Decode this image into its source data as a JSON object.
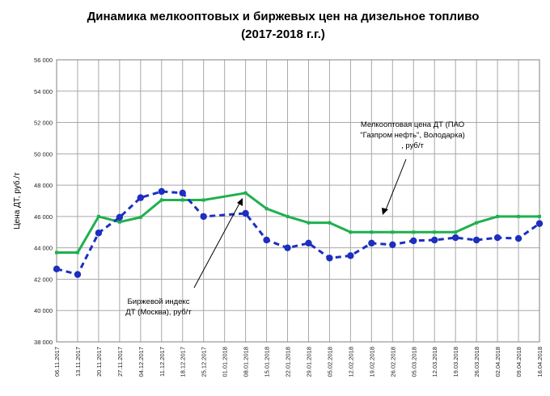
{
  "chart_data": {
    "type": "line",
    "title": "Динамика мелкооптовых и биржевых цен на дизельное топливо",
    "subtitle": "(2017-2018 г.г.)",
    "xlabel": "",
    "ylabel": "Цена ДТ, руб./т",
    "ylim": [
      38000,
      56000
    ],
    "yticks": [
      "38 000",
      "40 000",
      "42 000",
      "44 000",
      "46 000",
      "48 000",
      "50 000",
      "52 000",
      "54 000",
      "56 000"
    ],
    "ytick_values": [
      38000,
      40000,
      42000,
      44000,
      46000,
      48000,
      50000,
      52000,
      54000,
      56000
    ],
    "grid": true,
    "categories": [
      "06.11.2017",
      "13.11.2017",
      "20.11.2017",
      "27.11.2017",
      "04.12.2017",
      "11.12.2017",
      "18.12.2017",
      "25.12.2017",
      "01.01.2018",
      "08.01.2018",
      "15.01.2018",
      "22.01.2018",
      "29.01.2018",
      "05.02.2018",
      "12.02.2018",
      "19.02.2018",
      "26.02.2018",
      "05.03.2018",
      "12.03.2018",
      "19.03.2018",
      "26.03.2018",
      "02.04.2018",
      "09.04.2018",
      "16.04.2018"
    ],
    "series": [
      {
        "name": "Мелкооптовая цена ДТ (ПАО \"Газпром нефть\", Володарка) , руб/т",
        "color": "#1fb04e",
        "style": "solid",
        "values": [
          43700,
          43700,
          46000,
          45650,
          45950,
          47050,
          47050,
          47050,
          null,
          47500,
          46500,
          46000,
          45600,
          45600,
          45000,
          45000,
          45000,
          45000,
          45000,
          45000,
          45600,
          46000,
          46000,
          46000
        ]
      },
      {
        "name": "Биржевой индекс ДТ (Москва), руб/т",
        "color": "#1c2fbf",
        "style": "dashed",
        "values": [
          42650,
          42300,
          44950,
          45950,
          47200,
          47600,
          47500,
          46000,
          null,
          46200,
          44500,
          44000,
          44300,
          43350,
          43500,
          44300,
          44200,
          44450,
          44500,
          44650,
          44500,
          44650,
          44600,
          45550
        ]
      }
    ],
    "annotations": [
      {
        "text_lines": [
          "Мелкооптовая цена ДТ (ПАО",
          "\"Газпром нефть\", Володарка)",
          ", руб/т"
        ],
        "series": 0
      },
      {
        "text_lines": [
          "Биржевой индекс",
          "ДТ (Москва), руб/т"
        ],
        "series": 1
      }
    ]
  }
}
